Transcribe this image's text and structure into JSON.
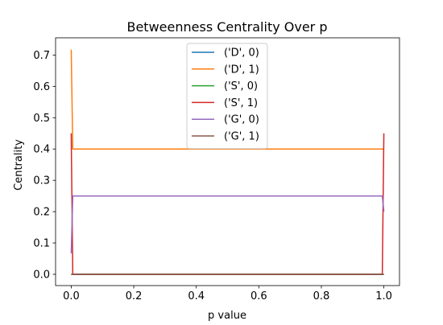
{
  "chart_data": {
    "type": "line",
    "title": "Betweenness Centrality Over p",
    "xlabel": "p value",
    "ylabel": "Centrality",
    "xlim": [
      -0.05,
      1.05
    ],
    "ylim": [
      -0.036,
      0.755
    ],
    "xticks": [
      0.0,
      0.2,
      0.4,
      0.6,
      0.8,
      1.0
    ],
    "xtick_labels": [
      "0.0",
      "0.2",
      "0.4",
      "0.6",
      "0.8",
      "1.0"
    ],
    "yticks": [
      0.0,
      0.1,
      0.2,
      0.3,
      0.4,
      0.5,
      0.6,
      0.7
    ],
    "ytick_labels": [
      "0.0",
      "0.1",
      "0.2",
      "0.3",
      "0.4",
      "0.5",
      "0.6",
      "0.7"
    ],
    "grid": false,
    "legend_position": "upper center",
    "series": [
      {
        "name": "('D', 0)",
        "color": "#1f77b4",
        "x": [
          0.0,
          0.005,
          0.995,
          1.0
        ],
        "y": [
          0.0,
          0.0,
          0.0,
          0.0
        ]
      },
      {
        "name": "('D', 1)",
        "color": "#ff7f0e",
        "x": [
          0.0,
          0.005,
          0.995,
          1.0
        ],
        "y": [
          0.717,
          0.4,
          0.4,
          0.4
        ]
      },
      {
        "name": "('S', 0)",
        "color": "#2ca02c",
        "x": [
          0.0,
          0.005,
          0.995,
          1.0
        ],
        "y": [
          0.0,
          0.0,
          0.0,
          0.0
        ]
      },
      {
        "name": "('S', 1)",
        "color": "#d62728",
        "x": [
          0.0,
          0.005,
          0.995,
          1.0
        ],
        "y": [
          0.45,
          0.0,
          0.0,
          0.45
        ]
      },
      {
        "name": "('G', 0)",
        "color": "#9467bd",
        "x": [
          0.0,
          0.005,
          0.995,
          1.0
        ],
        "y": [
          0.067,
          0.25,
          0.25,
          0.2
        ]
      },
      {
        "name": "('G', 1)",
        "color": "#8c564b",
        "x": [
          0.0,
          0.005,
          0.995,
          1.0
        ],
        "y": [
          0.0,
          0.0,
          0.0,
          0.0
        ]
      }
    ]
  }
}
